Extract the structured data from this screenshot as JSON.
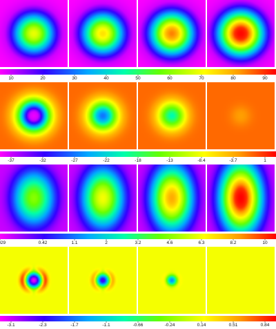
{
  "chart_data": [
    {
      "type": "heatmap",
      "panels": [
        {
          "peak": 69,
          "radius": 0.78,
          "elong": 1.0
        },
        {
          "peak": 74,
          "radius": 0.8,
          "elong": 1.0
        },
        {
          "peak": 84,
          "radius": 0.82,
          "elong": 1.0
        },
        {
          "peak": 97,
          "radius": 0.84,
          "elong": 1.0
        }
      ],
      "background": 1,
      "colorbar": {
        "ticks": [
          "10",
          "20",
          "30",
          "40",
          "50",
          "60",
          "70",
          "80",
          "90"
        ],
        "tick_values": [
          10,
          20,
          30,
          40,
          50,
          60,
          70,
          80,
          90
        ],
        "range": [
          1,
          98
        ]
      },
      "colormap": "hsv-magenta-to-red"
    },
    {
      "type": "heatmap",
      "panels": [
        {
          "center": -40,
          "radius": 0.62,
          "mode": "dip"
        },
        {
          "center": -27,
          "radius": 0.58,
          "mode": "dip"
        },
        {
          "center": -20,
          "radius": 0.55,
          "mode": "dip"
        },
        {
          "center": -3,
          "radius": 0.4,
          "mode": "dip"
        }
      ],
      "background": -1,
      "colorbar": {
        "ticks": [
          "-37",
          "-32",
          "-27",
          "-22",
          "-18",
          "-13",
          "-8.4",
          "-3.7",
          "1"
        ],
        "tick_values": [
          -37,
          -32,
          -27,
          -22,
          -18,
          -13,
          -8.4,
          -3.7,
          1
        ],
        "range": [
          -42,
          5
        ]
      },
      "colormap": "hsv-magenta-to-red"
    },
    {
      "type": "heatmap",
      "panels": [
        {
          "peak": 4.6,
          "radius": 0.7,
          "elong": 1.15
        },
        {
          "peak": 6.3,
          "radius": 0.72,
          "elong": 1.2
        },
        {
          "peak": 8.2,
          "radius": 0.74,
          "elong": 1.25
        },
        {
          "peak": 11.5,
          "radius": 0.76,
          "elong": 1.3
        }
      ],
      "background": 0.029,
      "colorbar": {
        "ticks": [
          "0.029",
          "0.42",
          "1.1",
          "2",
          "3.2",
          "4.6",
          "6.3",
          "8.2",
          "10"
        ],
        "tick_values": [
          0.029,
          0.42,
          1.1,
          2,
          3.2,
          4.6,
          6.3,
          8.2,
          10
        ],
        "scale": "nonlinear",
        "range": [
          0.029,
          11.5
        ]
      },
      "colormap": "hsv-magenta-to-red"
    },
    {
      "type": "heatmap",
      "panels": [
        {
          "min": -3.3,
          "max": 0.95,
          "radius": 0.28
        },
        {
          "min": -2.4,
          "max": 0.6,
          "radius": 0.24
        },
        {
          "min": -1.6,
          "max": 0.25,
          "radius": 0.2
        },
        {
          "min": 0.0,
          "max": 0.0,
          "radius": 0.0
        }
      ],
      "background": 0.14,
      "colorbar": {
        "ticks": [
          "-3.1",
          "-2.3",
          "-1.7",
          "-1.1",
          "-0.66",
          "-0.24",
          "0.14",
          "0.51",
          "0.84"
        ],
        "tick_values": [
          -3.1,
          -2.3,
          -1.7,
          -1.1,
          -0.66,
          -0.24,
          0.14,
          0.51,
          0.84
        ],
        "scale": "nonlinear",
        "range": [
          -3.4,
          1.0
        ]
      },
      "colormap": "hsv-magenta-to-red"
    }
  ]
}
